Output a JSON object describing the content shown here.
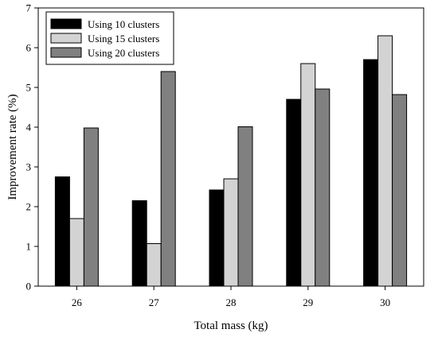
{
  "chart_data": {
    "type": "bar",
    "title": "",
    "xlabel": "Total mass (kg)",
    "ylabel": "Improvement rate (%)",
    "categories": [
      "26",
      "27",
      "28",
      "29",
      "30"
    ],
    "ylim": [
      0,
      7
    ],
    "yticks": [
      "0",
      "1",
      "2",
      "3",
      "4",
      "5",
      "6",
      "7"
    ],
    "grid": false,
    "legend_position": "top-left",
    "series": [
      {
        "name": "Using 10 clusters",
        "color": "#000000",
        "values": [
          2.75,
          2.15,
          2.42,
          4.7,
          5.7
        ]
      },
      {
        "name": "Using 15 clusters",
        "color": "#d3d3d3",
        "values": [
          1.7,
          1.07,
          2.7,
          5.6,
          6.3
        ]
      },
      {
        "name": "Using 20 clusters",
        "color": "#808080",
        "values": [
          3.98,
          5.4,
          4.01,
          4.96,
          4.82
        ]
      }
    ]
  }
}
